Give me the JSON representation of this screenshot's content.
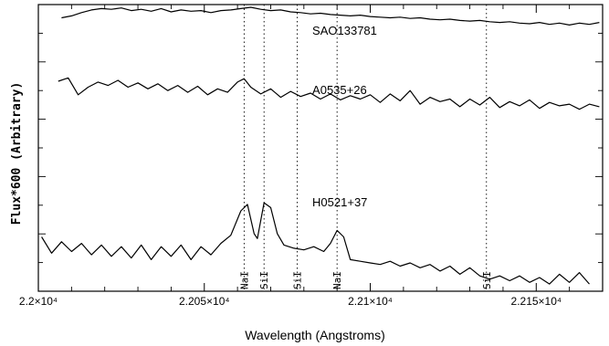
{
  "chart_data": {
    "type": "line",
    "title": "",
    "xlabel": "Wavelength (Angstroms)",
    "ylabel": "Flux*600 (Arbitrary)",
    "xlim": [
      22000,
      22170
    ],
    "ylim": [
      0,
      1
    ],
    "x_ticks": [
      {
        "value": 22000,
        "label": "2.2×10⁴"
      },
      {
        "value": 22050,
        "label": "2.205×10⁴"
      },
      {
        "value": 22100,
        "label": "2.21×10⁴"
      },
      {
        "value": 22150,
        "label": "2.215×10⁴"
      }
    ],
    "spectral_lines": [
      {
        "label": "NaI",
        "x": 22062
      },
      {
        "label": "SiI",
        "x": 22068
      },
      {
        "label": "SiI",
        "x": 22078
      },
      {
        "label": "NaI",
        "x": 22090
      },
      {
        "label": "SiI",
        "x": 22135
      }
    ],
    "series": [
      {
        "name": "SAO133781",
        "x": [
          22007,
          22010,
          22013,
          22016,
          22019,
          22022,
          22025,
          22028,
          22031,
          22034,
          22037,
          22040,
          22043,
          22046,
          22049,
          22052,
          22055,
          22058,
          22061,
          22064,
          22067,
          22070,
          22073,
          22076,
          22079,
          22082,
          22085,
          22088,
          22091,
          22094,
          22097,
          22100,
          22103,
          22106,
          22109,
          22112,
          22115,
          22118,
          22121,
          22124,
          22127,
          22130,
          22133,
          22136,
          22139,
          22142,
          22145,
          22148,
          22151,
          22154,
          22157,
          22160,
          22163,
          22166,
          22169
        ],
        "y": [
          0.84,
          0.87,
          0.92,
          0.96,
          0.98,
          0.97,
          0.99,
          0.95,
          0.97,
          0.94,
          0.98,
          0.93,
          0.96,
          0.94,
          0.95,
          0.92,
          0.95,
          0.96,
          0.98,
          1.0,
          0.97,
          0.95,
          0.96,
          0.93,
          0.92,
          0.9,
          0.91,
          0.89,
          0.88,
          0.87,
          0.88,
          0.86,
          0.85,
          0.84,
          0.85,
          0.83,
          0.84,
          0.82,
          0.81,
          0.82,
          0.8,
          0.79,
          0.8,
          0.78,
          0.77,
          0.78,
          0.76,
          0.75,
          0.77,
          0.74,
          0.76,
          0.73,
          0.76,
          0.74,
          0.77
        ]
      },
      {
        "name": "A0535+26",
        "x": [
          22006,
          22009,
          22012,
          22015,
          22018,
          22021,
          22024,
          22027,
          22030,
          22033,
          22036,
          22039,
          22042,
          22045,
          22048,
          22051,
          22054,
          22057,
          22060,
          22062,
          22064,
          22067,
          22070,
          22073,
          22076,
          22079,
          22082,
          22085,
          22088,
          22091,
          22094,
          22097,
          22100,
          22103,
          22106,
          22109,
          22112,
          22115,
          22118,
          22121,
          22124,
          22127,
          22130,
          22133,
          22136,
          22139,
          22142,
          22145,
          22148,
          22151,
          22154,
          22157,
          22160,
          22163,
          22166,
          22169
        ],
        "y": [
          0.71,
          0.75,
          0.55,
          0.64,
          0.7,
          0.66,
          0.72,
          0.64,
          0.69,
          0.62,
          0.68,
          0.6,
          0.66,
          0.58,
          0.65,
          0.55,
          0.62,
          0.58,
          0.7,
          0.74,
          0.64,
          0.56,
          0.62,
          0.52,
          0.59,
          0.53,
          0.57,
          0.5,
          0.56,
          0.49,
          0.54,
          0.5,
          0.55,
          0.46,
          0.56,
          0.48,
          0.6,
          0.44,
          0.52,
          0.47,
          0.5,
          0.41,
          0.5,
          0.43,
          0.52,
          0.4,
          0.47,
          0.42,
          0.49,
          0.39,
          0.46,
          0.42,
          0.44,
          0.38,
          0.44,
          0.41
        ]
      },
      {
        "name": "H0521+37",
        "x": [
          22001,
          22004,
          22007,
          22010,
          22013,
          22016,
          22019,
          22022,
          22025,
          22028,
          22031,
          22034,
          22037,
          22040,
          22043,
          22046,
          22049,
          22052,
          22055,
          22058,
          22061,
          22063,
          22065,
          22066,
          22068,
          22070,
          22072,
          22074,
          22077,
          22080,
          22083,
          22086,
          22088,
          22090,
          22092,
          22094,
          22097,
          22100,
          22103,
          22106,
          22109,
          22112,
          22115,
          22118,
          22121,
          22124,
          22127,
          22130,
          22133,
          22136,
          22139,
          22142,
          22145,
          22148,
          22151,
          22154,
          22157,
          22160,
          22163,
          22166
        ],
        "y": [
          0.34,
          0.24,
          0.31,
          0.25,
          0.3,
          0.23,
          0.29,
          0.22,
          0.28,
          0.21,
          0.29,
          0.2,
          0.28,
          0.22,
          0.29,
          0.2,
          0.28,
          0.23,
          0.3,
          0.35,
          0.5,
          0.54,
          0.36,
          0.33,
          0.55,
          0.52,
          0.36,
          0.29,
          0.27,
          0.26,
          0.28,
          0.25,
          0.3,
          0.38,
          0.34,
          0.2,
          0.19,
          0.18,
          0.17,
          0.19,
          0.16,
          0.18,
          0.15,
          0.17,
          0.13,
          0.16,
          0.11,
          0.15,
          0.1,
          0.08,
          0.1,
          0.07,
          0.1,
          0.06,
          0.09,
          0.05,
          0.11,
          0.06,
          0.12,
          0.05
        ]
      }
    ]
  }
}
